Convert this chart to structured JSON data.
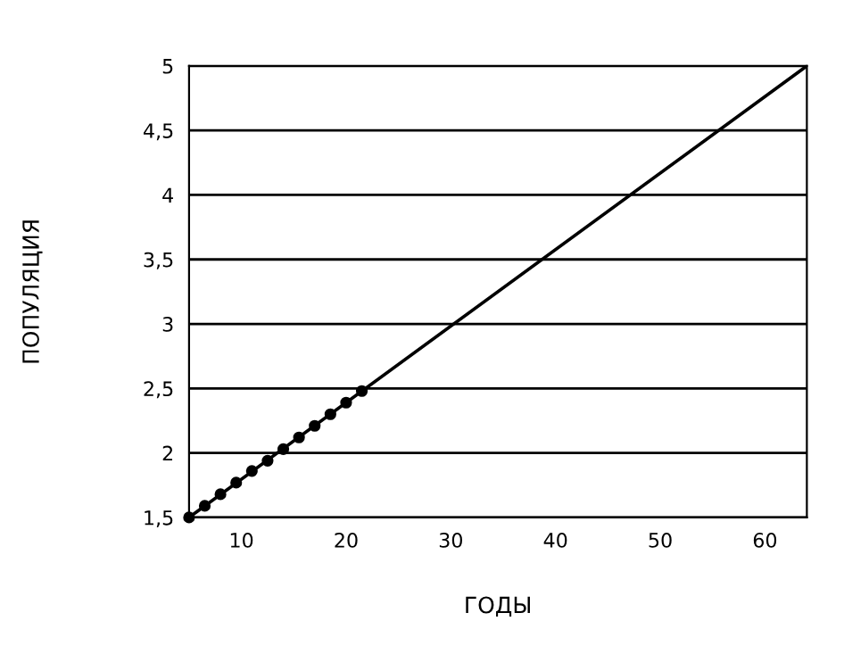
{
  "chart_data": {
    "type": "line",
    "xlabel": "ГОДЫ",
    "ylabel": "ПОПУЛЯЦИЯ",
    "xlim": [
      5,
      64
    ],
    "xticks": [
      10,
      20,
      30,
      40,
      50,
      60
    ],
    "ylim": [
      1.5,
      5
    ],
    "yticks": [
      {
        "value": 1.5,
        "label": "1,5"
      },
      2,
      {
        "value": 2.5,
        "label": "2,5"
      },
      3,
      {
        "value": 3.5,
        "label": "3,5"
      },
      4,
      {
        "value": 4.5,
        "label": "4,5"
      },
      5
    ],
    "grid": "y",
    "series": [
      {
        "color": "#000000",
        "x": [
          5,
          64
        ],
        "values": [
          1.5,
          5
        ],
        "marker": "none"
      },
      {
        "type": "scatter",
        "color": "#000000",
        "x": [
          5,
          6.5,
          8,
          9.5,
          11,
          12.5,
          14,
          15.5,
          17,
          18.5,
          20,
          21.5
        ],
        "values": [
          1.5,
          1.59,
          1.68,
          1.77,
          1.86,
          1.94,
          2.03,
          2.12,
          2.21,
          2.3,
          2.39,
          2.48
        ],
        "marker": "circle"
      }
    ]
  }
}
